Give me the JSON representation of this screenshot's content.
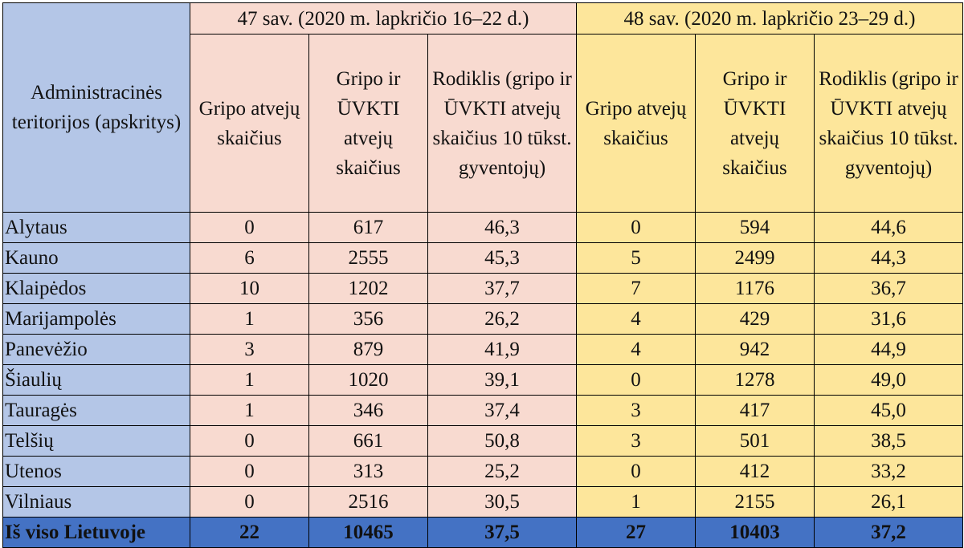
{
  "table": {
    "header": {
      "region_title": "Administracinės teritorijos (apskritys)",
      "week1_label": "47 sav. (2020 m. lapkričio 16–22 d.)",
      "week2_label": "48 sav. (2020 m. lapkričio 23–29 d.)",
      "col_flu": "Gripo atvejų skaičius",
      "col_flu_ari": "Gripo ir ŪVKTI atvejų skaičius",
      "col_rate": "Rodiklis (gripo ir ŪVKTI atvejų skaičius 10 tūkst. gyventojų)"
    },
    "rows": [
      {
        "region": "Alytaus",
        "w47_flu": "0",
        "w47_total": "617",
        "w47_rate": "46,3",
        "w48_flu": "0",
        "w48_total": "594",
        "w48_rate": "44,6"
      },
      {
        "region": "Kauno",
        "w47_flu": "6",
        "w47_total": "2555",
        "w47_rate": "45,3",
        "w48_flu": "5",
        "w48_total": "2499",
        "w48_rate": "44,3"
      },
      {
        "region": "Klaipėdos",
        "w47_flu": "10",
        "w47_total": "1202",
        "w47_rate": "37,7",
        "w48_flu": "7",
        "w48_total": "1176",
        "w48_rate": "36,7"
      },
      {
        "region": "Marijampolės",
        "w47_flu": "1",
        "w47_total": "356",
        "w47_rate": "26,2",
        "w48_flu": "4",
        "w48_total": "429",
        "w48_rate": "31,6"
      },
      {
        "region": "Panevėžio",
        "w47_flu": "3",
        "w47_total": "879",
        "w47_rate": "41,9",
        "w48_flu": "4",
        "w48_total": "942",
        "w48_rate": "44,9"
      },
      {
        "region": "Šiaulių",
        "w47_flu": "1",
        "w47_total": "1020",
        "w47_rate": "39,1",
        "w48_flu": "0",
        "w48_total": "1278",
        "w48_rate": "49,0"
      },
      {
        "region": "Tauragės",
        "w47_flu": "1",
        "w47_total": "346",
        "w47_rate": "37,4",
        "w48_flu": "3",
        "w48_total": "417",
        "w48_rate": "45,0"
      },
      {
        "region": "Telšių",
        "w47_flu": "0",
        "w47_total": "661",
        "w47_rate": "50,8",
        "w48_flu": "3",
        "w48_total": "501",
        "w48_rate": "38,5"
      },
      {
        "region": "Utenos",
        "w47_flu": "0",
        "w47_total": "313",
        "w47_rate": "25,2",
        "w48_flu": "0",
        "w48_total": "412",
        "w48_rate": "33,2"
      },
      {
        "region": "Vilniaus",
        "w47_flu": "0",
        "w47_total": "2516",
        "w47_rate": "30,5",
        "w48_flu": "1",
        "w48_total": "2155",
        "w48_rate": "26,1"
      }
    ],
    "total": {
      "region": "Iš viso Lietuvoje",
      "w47_flu": "22",
      "w47_total": "10465",
      "w47_rate": "37,5",
      "w48_flu": "27",
      "w48_total": "10403",
      "w48_rate": "37,2"
    }
  },
  "colors": {
    "region_column": "#b4c6e7",
    "week47_fill": "#f8dad0",
    "week48_fill": "#fde69b",
    "total_row": "#4472c4"
  }
}
